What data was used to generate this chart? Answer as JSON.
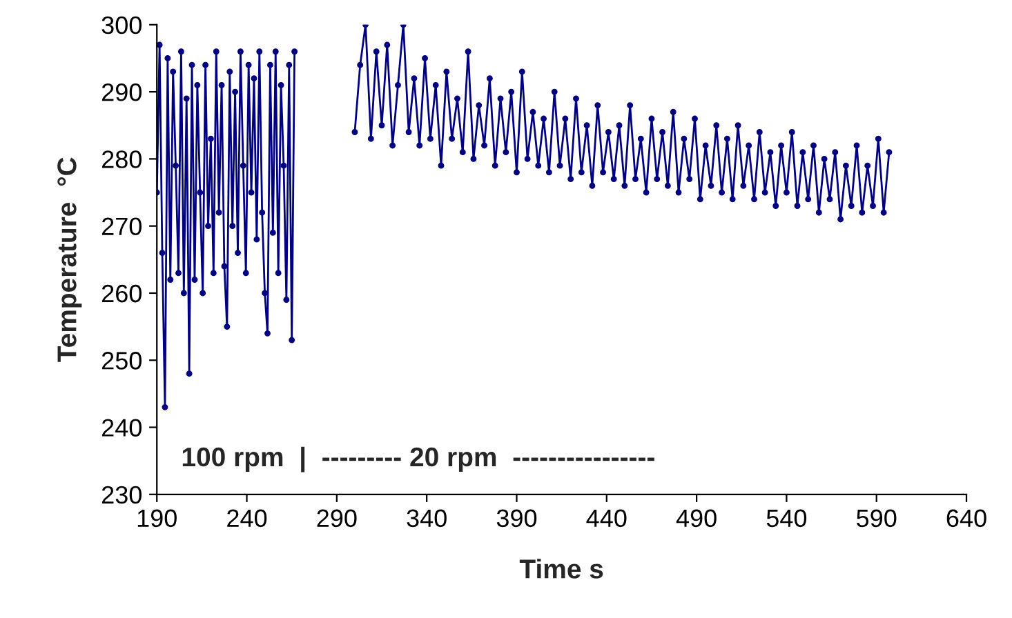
{
  "chart_data": {
    "type": "line",
    "xlabel": "Time s",
    "ylabel": "Temperature  °C",
    "xlim": [
      190,
      640
    ],
    "xticks": [
      190,
      240,
      290,
      340,
      390,
      440,
      490,
      540,
      590,
      640
    ],
    "ylim": [
      230,
      300
    ],
    "yticks": [
      230,
      240,
      250,
      260,
      270,
      280,
      290,
      300
    ],
    "grid": false,
    "legend": false,
    "marker": "circle",
    "line_style": "solid",
    "annotations": [
      "100 rpm  |  --------- 20 rpm  ----------------"
    ],
    "series": [
      {
        "color": "#000080",
        "x": [
          190,
          191.5,
          193,
          194.5,
          196,
          197.5,
          199,
          200.5,
          202,
          203.5,
          205,
          206.5,
          208,
          209.5,
          211,
          212.5,
          214,
          215.5,
          217,
          218.5,
          220,
          221.5,
          223,
          224.5,
          226,
          227.5,
          229,
          230.5,
          232,
          233.5,
          235,
          236.5,
          238,
          239.5,
          241,
          242.5,
          244,
          245.5,
          247,
          248.5,
          250,
          251.5,
          253,
          254.5,
          256,
          257.5,
          259,
          260.5,
          262,
          263.5,
          265,
          266.5,
          283,
          300,
          303,
          306,
          309,
          312,
          315,
          318,
          321,
          324,
          327,
          330,
          333,
          336,
          339,
          342,
          345,
          348,
          351,
          354,
          357,
          360,
          363,
          366,
          369,
          372,
          375,
          378,
          381,
          384,
          387,
          390,
          393,
          396,
          399,
          402,
          405,
          408,
          411,
          414,
          417,
          420,
          423,
          426,
          429,
          432,
          435,
          438,
          441,
          444,
          447,
          450,
          453,
          456,
          459,
          462,
          465,
          468,
          471,
          474,
          477,
          480,
          483,
          486,
          489,
          492,
          495,
          498,
          501,
          504,
          507,
          510,
          513,
          516,
          519,
          522,
          525,
          528,
          531,
          534,
          537,
          540,
          543,
          546,
          549,
          552,
          555,
          558,
          561,
          564,
          567,
          570,
          573,
          576,
          579,
          582,
          585,
          588,
          591,
          594,
          597
        ],
        "values": [
          275,
          297,
          266,
          243,
          295,
          262,
          293,
          279,
          263,
          296,
          260,
          289,
          248,
          294,
          262,
          291,
          275,
          260,
          294,
          270,
          283,
          263,
          296,
          272,
          291,
          264,
          255,
          293,
          270,
          290,
          266,
          296,
          279,
          263,
          294,
          275,
          292,
          268,
          296,
          272,
          260,
          254,
          294,
          269,
          296,
          263,
          291,
          279,
          259,
          294,
          253,
          296,
          null,
          284,
          294,
          300,
          283,
          296,
          285,
          297,
          282,
          291,
          300,
          284,
          292,
          282,
          295,
          283,
          291,
          279,
          293,
          283,
          289,
          281,
          296,
          280,
          288,
          282,
          292,
          279,
          289,
          281,
          290,
          278,
          293,
          280,
          287,
          279,
          286,
          278,
          290,
          279,
          286,
          277,
          289,
          278,
          285,
          276,
          288,
          278,
          284,
          277,
          285,
          276,
          288,
          277,
          283,
          275,
          286,
          277,
          284,
          276,
          287,
          275,
          283,
          277,
          286,
          274,
          282,
          276,
          285,
          275,
          283,
          274,
          285,
          276,
          282,
          274,
          284,
          275,
          281,
          273,
          282,
          275,
          284,
          273,
          281,
          274,
          282,
          272,
          280,
          274,
          281,
          271,
          279,
          273,
          282,
          272,
          279,
          273,
          283,
          272,
          281
        ]
      }
    ]
  }
}
